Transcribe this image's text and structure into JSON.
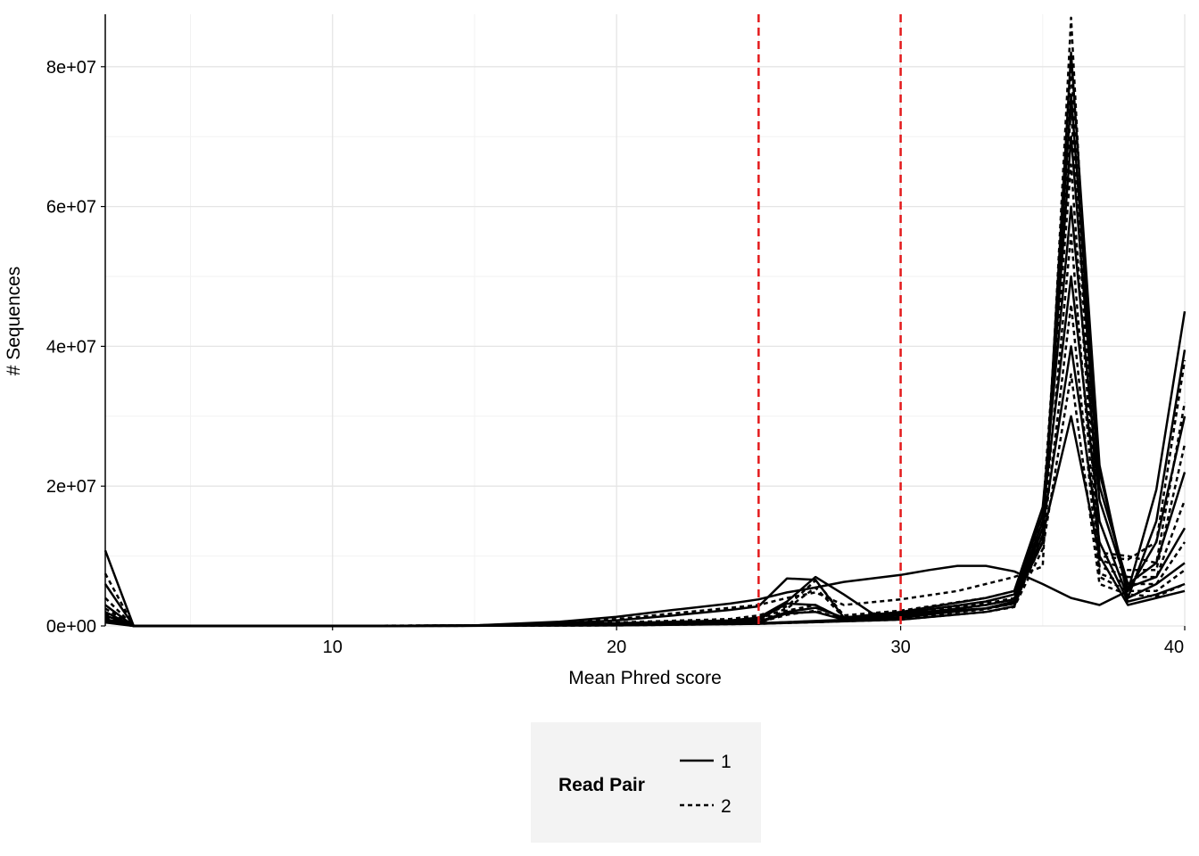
{
  "chart_data": {
    "type": "line",
    "title": "",
    "xlabel": "Mean Phred score",
    "ylabel": "# Sequences",
    "xlim": [
      2,
      40
    ],
    "ylim": [
      0,
      87500000
    ],
    "x_ticks": [
      10,
      20,
      30,
      40
    ],
    "x_tick_labels": [
      "10",
      "20",
      "30",
      "40"
    ],
    "y_ticks": [
      0,
      20000000,
      40000000,
      60000000,
      80000000
    ],
    "y_tick_labels": [
      "0e+00",
      "2e+07",
      "4e+07",
      "6e+07",
      "8e+07"
    ],
    "grid": true,
    "reference_lines": [
      {
        "axis": "x",
        "value": 25,
        "color": "#e41a1c",
        "style": "dashed"
      },
      {
        "axis": "x",
        "value": 30,
        "color": "#e41a1c",
        "style": "dashed"
      }
    ],
    "legend": {
      "title": "Read Pair",
      "placement": "bottom",
      "entries": [
        {
          "label": "1",
          "style": "solid"
        },
        {
          "label": "2",
          "style": "dashed"
        }
      ]
    },
    "line_color": "#000000",
    "series": [
      {
        "name": "1",
        "style": "solid",
        "x": [
          2,
          3,
          10,
          12,
          15,
          18,
          20,
          22,
          24,
          25,
          26,
          27,
          28,
          30,
          31,
          32,
          33,
          34,
          35,
          36,
          37,
          38,
          39,
          40
        ],
        "y": [
          10800000,
          0,
          0,
          10000,
          80000,
          600000,
          1300000,
          2300000,
          3200000,
          3800000,
          4800000,
          5500000,
          6300000,
          7300000,
          8000000,
          8600000,
          8600000,
          7800000,
          6000000,
          4000000,
          3000000,
          5000000,
          19500000,
          45000000
        ]
      },
      {
        "name": "1",
        "style": "solid",
        "x": [
          2,
          3,
          10,
          15,
          18,
          20,
          22,
          24,
          25,
          26,
          27,
          28,
          30,
          33,
          34,
          35,
          36,
          37,
          38,
          39,
          40
        ],
        "y": [
          6000000,
          0,
          0,
          60000,
          400000,
          800000,
          1500000,
          2300000,
          2800000,
          6800000,
          6600000,
          1200000,
          1800000,
          2500000,
          3500000,
          12000000,
          82000000,
          23000000,
          4000000,
          15000000,
          39500000
        ]
      },
      {
        "name": "1",
        "style": "solid",
        "x": [
          2,
          3,
          10,
          15,
          20,
          24,
          25,
          26,
          27,
          28,
          29,
          30,
          33,
          34,
          35,
          36,
          37,
          38,
          39,
          40
        ],
        "y": [
          3000000,
          0,
          0,
          30000,
          400000,
          800000,
          1200000,
          3500000,
          7000000,
          4500000,
          1800000,
          1500000,
          2500000,
          3500000,
          14000000,
          76000000,
          22000000,
          5000000,
          12000000,
          30000000
        ]
      },
      {
        "name": "1",
        "style": "solid",
        "x": [
          2,
          3,
          10,
          15,
          20,
          24,
          25,
          26,
          27,
          28,
          30,
          33,
          34,
          35,
          36,
          37,
          38,
          39,
          40
        ],
        "y": [
          2000000,
          0,
          0,
          20000,
          300000,
          600000,
          900000,
          3200000,
          3000000,
          1000000,
          1500000,
          3000000,
          3800000,
          15000000,
          70000000,
          20000000,
          6000000,
          9000000,
          22000000
        ]
      },
      {
        "name": "1",
        "style": "solid",
        "x": [
          2,
          3,
          10,
          15,
          20,
          25,
          26,
          27,
          28,
          30,
          33,
          34,
          35,
          36,
          37,
          38,
          39,
          40
        ],
        "y": [
          1500000,
          0,
          0,
          10000,
          200000,
          600000,
          2000000,
          2600000,
          1200000,
          2000000,
          4000000,
          5000000,
          17000000,
          60000000,
          18000000,
          5500000,
          7000000,
          14000000
        ]
      },
      {
        "name": "1",
        "style": "solid",
        "x": [
          2,
          3,
          10,
          20,
          25,
          26,
          27,
          28,
          30,
          33,
          34,
          35,
          36,
          37,
          38,
          39,
          40
        ],
        "y": [
          1000000,
          0,
          0,
          150000,
          500000,
          1800000,
          2000000,
          900000,
          1800000,
          3500000,
          4500000,
          16000000,
          50000000,
          15000000,
          4000000,
          6000000,
          9000000
        ]
      },
      {
        "name": "1",
        "style": "solid",
        "x": [
          2,
          3,
          10,
          20,
          25,
          30,
          33,
          34,
          35,
          36,
          37,
          38,
          39,
          40
        ],
        "y": [
          800000,
          0,
          0,
          100000,
          400000,
          1200000,
          2500000,
          3200000,
          14000000,
          40000000,
          12000000,
          3500000,
          4500000,
          6000000
        ]
      },
      {
        "name": "1",
        "style": "solid",
        "x": [
          2,
          3,
          10,
          20,
          25,
          30,
          33,
          34,
          35,
          36,
          37,
          38,
          39,
          40
        ],
        "y": [
          500000,
          0,
          0,
          80000,
          300000,
          900000,
          2000000,
          2800000,
          13000000,
          30000000,
          10000000,
          3000000,
          4000000,
          5000000
        ]
      },
      {
        "name": "2",
        "style": "dashed",
        "x": [
          2,
          3,
          10,
          15,
          18,
          20,
          22,
          24,
          25,
          26,
          27,
          28,
          30,
          32,
          34,
          35,
          36,
          37,
          38,
          39,
          40
        ],
        "y": [
          7500000,
          0,
          0,
          70000,
          500000,
          1000000,
          1800000,
          2600000,
          3000000,
          4000000,
          4800000,
          3000000,
          3800000,
          5000000,
          7000000,
          8500000,
          87000000,
          10000000,
          9500000,
          12000000,
          38000000
        ]
      },
      {
        "name": "2",
        "style": "dashed",
        "x": [
          2,
          3,
          10,
          15,
          20,
          24,
          25,
          26,
          27,
          28,
          30,
          33,
          34,
          35,
          36,
          37,
          38,
          39,
          40
        ],
        "y": [
          4000000,
          0,
          0,
          40000,
          500000,
          1000000,
          1500000,
          2800000,
          6500000,
          1500000,
          2200000,
          4000000,
          5000000,
          12000000,
          80000000,
          10500000,
          10000000,
          9000000,
          32000000
        ]
      },
      {
        "name": "2",
        "style": "dashed",
        "x": [
          2,
          3,
          10,
          15,
          20,
          24,
          25,
          26,
          27,
          28,
          30,
          33,
          34,
          35,
          36,
          37,
          38,
          39,
          40
        ],
        "y": [
          2500000,
          0,
          0,
          20000,
          300000,
          700000,
          1000000,
          2500000,
          5500000,
          1200000,
          1800000,
          3500000,
          4500000,
          16000000,
          74000000,
          9500000,
          8000000,
          8000000,
          26000000
        ]
      },
      {
        "name": "2",
        "style": "dashed",
        "x": [
          2,
          3,
          10,
          20,
          25,
          26,
          27,
          28,
          30,
          33,
          34,
          35,
          36,
          37,
          38,
          39,
          40
        ],
        "y": [
          1800000,
          0,
          0,
          200000,
          700000,
          2200000,
          3000000,
          1000000,
          1600000,
          3200000,
          4000000,
          15000000,
          66000000,
          8500000,
          7000000,
          7000000,
          18000000
        ]
      },
      {
        "name": "2",
        "style": "dashed",
        "x": [
          2,
          3,
          10,
          20,
          25,
          26,
          27,
          28,
          30,
          33,
          34,
          35,
          36,
          37,
          38,
          39,
          40
        ],
        "y": [
          1200000,
          0,
          0,
          150000,
          500000,
          1600000,
          2200000,
          900000,
          1400000,
          3000000,
          3800000,
          13000000,
          56000000,
          7500000,
          6000000,
          6000000,
          12000000
        ]
      },
      {
        "name": "2",
        "style": "dashed",
        "x": [
          2,
          3,
          10,
          20,
          25,
          30,
          33,
          34,
          35,
          36,
          37,
          38,
          39,
          40
        ],
        "y": [
          900000,
          0,
          0,
          100000,
          400000,
          1100000,
          2400000,
          3200000,
          12000000,
          46000000,
          7000000,
          5000000,
          5000000,
          8000000
        ]
      },
      {
        "name": "2",
        "style": "dashed",
        "x": [
          2,
          3,
          10,
          20,
          25,
          30,
          33,
          34,
          35,
          36,
          37,
          38,
          39,
          40
        ],
        "y": [
          600000,
          0,
          0,
          80000,
          300000,
          900000,
          2000000,
          2700000,
          11000000,
          36000000,
          6000000,
          4500000,
          4200000,
          6000000
        ]
      }
    ]
  }
}
